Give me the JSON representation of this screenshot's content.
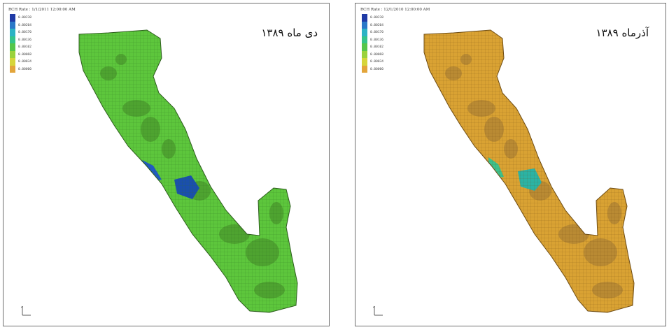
{
  "panels": [
    {
      "rate_title": "RCH Rate : 1/1/2011 12:00:00 AM",
      "date_label": "دی ماه ۱۳۸۹",
      "fill_color": "#5dc63c",
      "shade_color": "#4ea330",
      "accent_colors": [
        "#2159c6",
        "#1a4fae"
      ],
      "legend": [
        {
          "label": "0.00238",
          "color": "#1f3aa6"
        },
        {
          "label": "0.00204",
          "color": "#2a78c8"
        },
        {
          "label": "0.00170",
          "color": "#2bb3c4"
        },
        {
          "label": "0.00136",
          "color": "#34c48a"
        },
        {
          "label": "0.00102",
          "color": "#55c64a"
        },
        {
          "label": "0.00068",
          "color": "#9bd23b"
        },
        {
          "label": "0.00034",
          "color": "#d6d53a"
        },
        {
          "label": "0.00000",
          "color": "#e3a53a"
        }
      ]
    },
    {
      "rate_title": "RCH Rate : 12/1/2010 12:00:00 AM",
      "date_label": "آذرماه ۱۳۸۹",
      "fill_color": "#d9a233",
      "shade_color": "#b98a33",
      "accent_colors": [
        "#3cc18c",
        "#2bb3a4"
      ],
      "legend": [
        {
          "label": "0.00238",
          "color": "#1f3aa6"
        },
        {
          "label": "0.00204",
          "color": "#2a78c8"
        },
        {
          "label": "0.00170",
          "color": "#2bb3c4"
        },
        {
          "label": "0.00136",
          "color": "#34c48a"
        },
        {
          "label": "0.00102",
          "color": "#55c64a"
        },
        {
          "label": "0.00068",
          "color": "#9bd23b"
        },
        {
          "label": "0.00034",
          "color": "#d6d53a"
        },
        {
          "label": "0.00000",
          "color": "#e3a53a"
        }
      ]
    }
  ]
}
